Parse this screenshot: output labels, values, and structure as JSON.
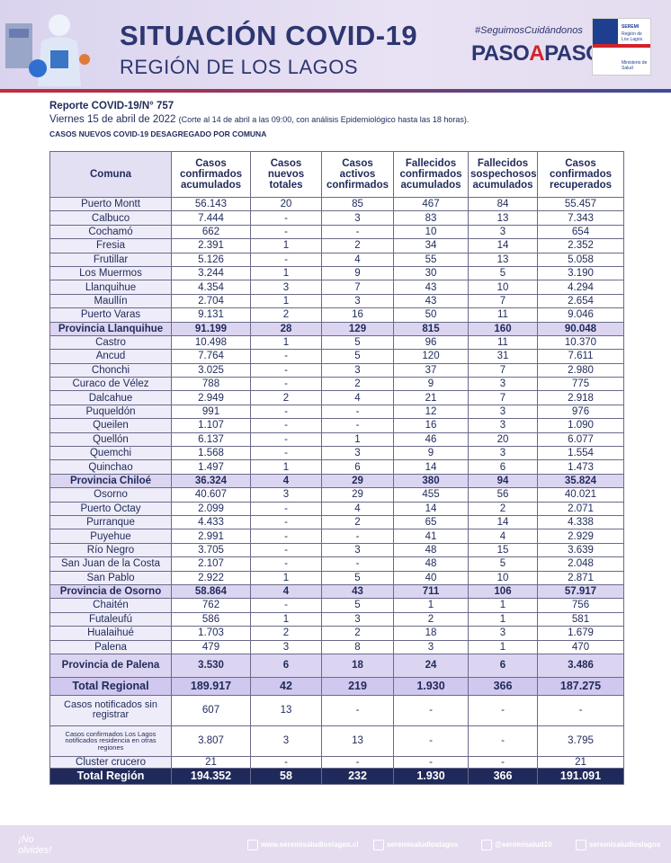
{
  "header": {
    "title": "SITUACIÓN COVID-19",
    "subtitle": "REGIÓN DE LOS LAGOS",
    "hashtag": "#SeguimosCuidándonos",
    "brand_a": "PASO",
    "brand_b": "A",
    "brand_c": "PASO",
    "logo_top": "SEREMI",
    "logo_mid": "Región de Los Lagos",
    "logo_bottom": "Ministerio de Salud"
  },
  "report": {
    "number": "Reporte COVID-19/N° 757",
    "date": "Viernes 15 de abril de 2022",
    "note": "(Corte al 14 de abril a las 09:00, con análisis Epidemiológico hasta las 18 horas).",
    "section": "CASOS NUEVOS COVID-19 DESAGREGADO POR COMUNA"
  },
  "table": {
    "headers": [
      "Comuna",
      "Casos confirmados acumulados",
      "Casos nuevos totales",
      "Casos activos confirmados",
      "Fallecidos confirmados acumulados",
      "Fallecidos sospechosos acumulados",
      "Casos confirmados recuperados"
    ],
    "rows": [
      [
        "Puerto Montt",
        "56.143",
        "20",
        "85",
        "467",
        "84",
        "55.457"
      ],
      [
        "Calbuco",
        "7.444",
        "-",
        "3",
        "83",
        "13",
        "7.343"
      ],
      [
        "Cochamó",
        "662",
        "-",
        "-",
        "10",
        "3",
        "654"
      ],
      [
        "Fresia",
        "2.391",
        "1",
        "2",
        "34",
        "14",
        "2.352"
      ],
      [
        "Frutillar",
        "5.126",
        "-",
        "4",
        "55",
        "13",
        "5.058"
      ],
      [
        "Los Muermos",
        "3.244",
        "1",
        "9",
        "30",
        "5",
        "3.190"
      ],
      [
        "Llanquihue",
        "4.354",
        "3",
        "7",
        "43",
        "10",
        "4.294"
      ],
      [
        "Maullín",
        "2.704",
        "1",
        "3",
        "43",
        "7",
        "2.654"
      ],
      [
        "Puerto Varas",
        "9.131",
        "2",
        "16",
        "50",
        "11",
        "9.046"
      ],
      [
        "Provincia Llanquihue",
        "91.199",
        "28",
        "129",
        "815",
        "160",
        "90.048"
      ],
      [
        "Castro",
        "10.498",
        "1",
        "5",
        "96",
        "11",
        "10.370"
      ],
      [
        "Ancud",
        "7.764",
        "-",
        "5",
        "120",
        "31",
        "7.611"
      ],
      [
        "Chonchi",
        "3.025",
        "-",
        "3",
        "37",
        "7",
        "2.980"
      ],
      [
        "Curaco de Vélez",
        "788",
        "-",
        "2",
        "9",
        "3",
        "775"
      ],
      [
        "Dalcahue",
        "2.949",
        "2",
        "4",
        "21",
        "7",
        "2.918"
      ],
      [
        "Puqueldón",
        "991",
        "-",
        "-",
        "12",
        "3",
        "976"
      ],
      [
        "Queilen",
        "1.107",
        "-",
        "-",
        "16",
        "3",
        "1.090"
      ],
      [
        "Quellón",
        "6.137",
        "-",
        "1",
        "46",
        "20",
        "6.077"
      ],
      [
        "Quemchi",
        "1.568",
        "-",
        "3",
        "9",
        "3",
        "1.554"
      ],
      [
        "Quinchao",
        "1.497",
        "1",
        "6",
        "14",
        "6",
        "1.473"
      ],
      [
        "Provincia Chiloé",
        "36.324",
        "4",
        "29",
        "380",
        "94",
        "35.824"
      ],
      [
        "Osorno",
        "40.607",
        "3",
        "29",
        "455",
        "56",
        "40.021"
      ],
      [
        "Puerto Octay",
        "2.099",
        "-",
        "4",
        "14",
        "2",
        "2.071"
      ],
      [
        "Purranque",
        "4.433",
        "-",
        "2",
        "65",
        "14",
        "4.338"
      ],
      [
        "Puyehue",
        "2.991",
        "-",
        "-",
        "41",
        "4",
        "2.929"
      ],
      [
        "Río Negro",
        "3.705",
        "-",
        "3",
        "48",
        "15",
        "3.639"
      ],
      [
        "San Juan de la Costa",
        "2.107",
        "-",
        "-",
        "48",
        "5",
        "2.048"
      ],
      [
        "San Pablo",
        "2.922",
        "1",
        "5",
        "40",
        "10",
        "2.871"
      ],
      [
        "Provincia de Osorno",
        "58.864",
        "4",
        "43",
        "711",
        "106",
        "57.917"
      ],
      [
        "Chaitén",
        "762",
        "-",
        "5",
        "1",
        "1",
        "756"
      ],
      [
        "Futaleufú",
        "586",
        "1",
        "3",
        "2",
        "1",
        "581"
      ],
      [
        "Hualaihué",
        "1.703",
        "2",
        "2",
        "18",
        "3",
        "1.679"
      ],
      [
        "Palena",
        "479",
        "3",
        "8",
        "3",
        "1",
        "470"
      ],
      [
        "Provincia de Palena",
        "3.530",
        "6",
        "18",
        "24",
        "6",
        "3.486"
      ],
      [
        "Total Regional",
        "189.917",
        "42",
        "219",
        "1.930",
        "366",
        "187.275"
      ],
      [
        "Casos notificados sin registrar",
        "607",
        "13",
        "-",
        "-",
        "-",
        "-"
      ],
      [
        "Casos confirmados Los Lagos notificados residencia en otras regiones",
        "3.807",
        "3",
        "13",
        "-",
        "-",
        "3.795"
      ],
      [
        "Cluster crucero",
        "21",
        "-",
        "-",
        "-",
        "-",
        "21"
      ],
      [
        "Total Región",
        "194.352",
        "58",
        "232",
        "1.930",
        "366",
        "191.091"
      ]
    ]
  },
  "footer": {
    "reminder": "¡No olvides!",
    "web": "www.seremisaludloslagos.cl",
    "facebook": "seremisaludloslagos",
    "twitter": "@seremisalud10",
    "instagram": "seremisaludloslagos"
  }
}
